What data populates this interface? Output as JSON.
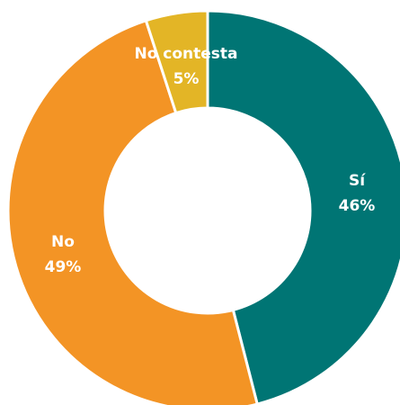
{
  "chart_data": {
    "type": "donut",
    "categories": [
      "Sí",
      "No",
      "No contesta"
    ],
    "values": [
      46,
      49,
      5
    ],
    "value_labels": [
      "46%",
      "49%",
      "5%"
    ],
    "colors": [
      "#007574",
      "#f39425",
      "#e3b526"
    ]
  }
}
